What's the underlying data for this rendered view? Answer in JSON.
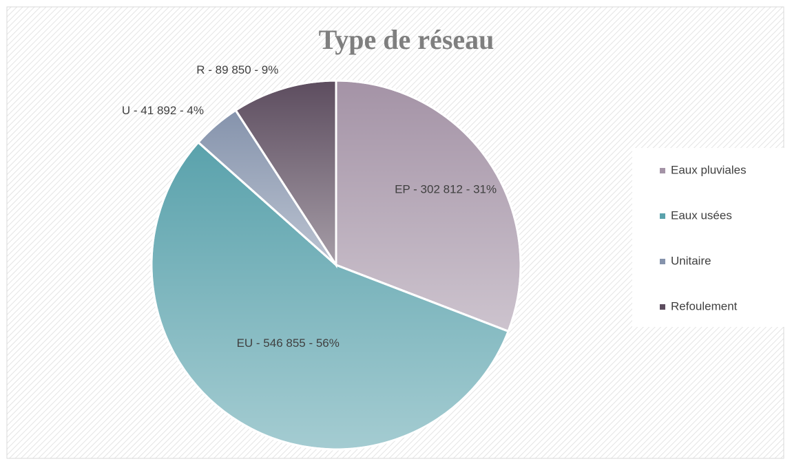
{
  "chart_data": {
    "type": "pie",
    "title": "Type de réseau",
    "categories": [
      "Eaux pluviales",
      "Eaux usées",
      "Unitaire",
      "Refoulement"
    ],
    "values": [
      302812,
      546855,
      41892,
      89850
    ],
    "value_labels": [
      "EP - 302 812 - 31%",
      "EU - 546 855 - 56%",
      "U - 41 892 - 4%",
      "R - 89 850 - 9%"
    ],
    "colors": [
      "#a493a6",
      "#5aa2ac",
      "#8593ac",
      "#5d4d5f"
    ],
    "legend": "right"
  }
}
